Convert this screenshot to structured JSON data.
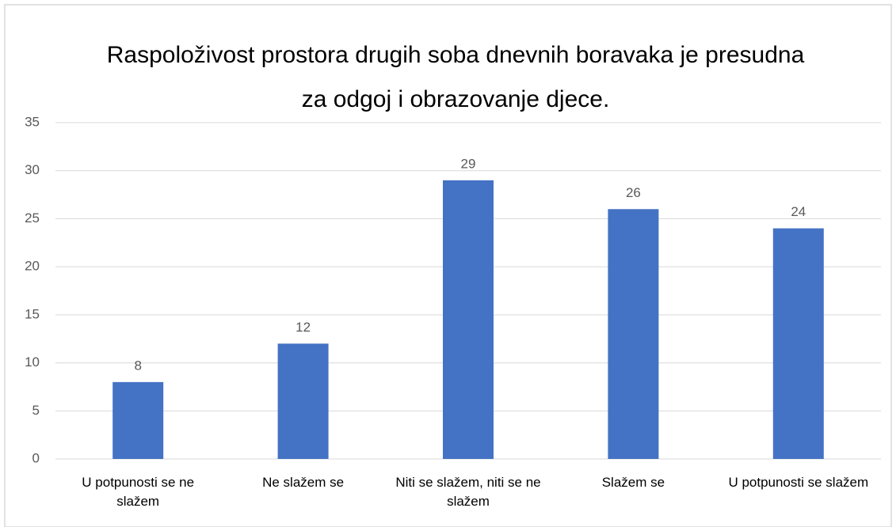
{
  "chart_data": {
    "type": "bar",
    "title": "Raspoloživost prostora drugih soba dnevnih boravaka je presudna za odgoj i obrazovanje djece.",
    "categories": [
      "U potpunosti se ne slažem",
      "Ne slažem se",
      "Niti se slažem, niti se ne slažem",
      "Slažem se",
      "U potpunosti se slažem"
    ],
    "values": [
      8,
      12,
      29,
      26,
      24
    ],
    "color": "#4472c4",
    "ylim": [
      0,
      35
    ],
    "yticks": [
      0,
      5,
      10,
      15,
      20,
      25,
      30,
      35
    ],
    "grid": true
  }
}
